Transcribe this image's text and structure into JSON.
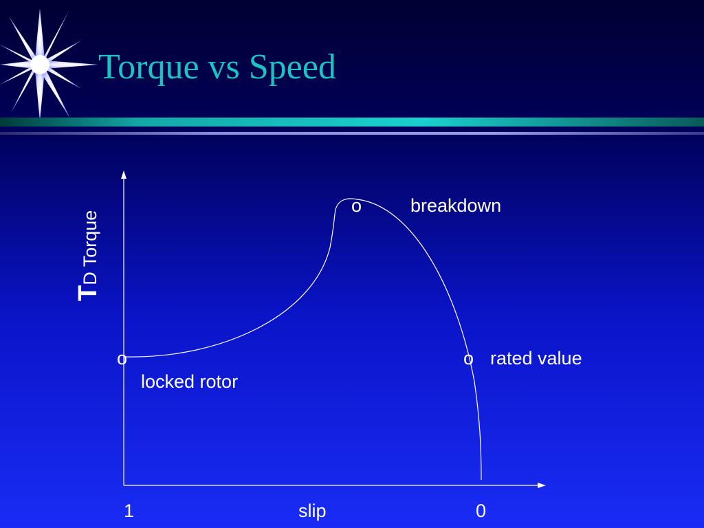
{
  "slide": {
    "title": "Torque vs Speed"
  },
  "diagram": {
    "y_axis_symbol": "T",
    "y_axis_label": "D Torque",
    "x_tick_left": "1",
    "x_axis_label": "slip",
    "x_tick_right": "0",
    "points": {
      "breakdown": {
        "marker": "o",
        "label": "breakdown"
      },
      "rated": {
        "marker": "o",
        "label": "rated value"
      },
      "locked": {
        "marker": "o",
        "label": "locked rotor"
      }
    },
    "colors": {
      "background_top": "#000033",
      "background_bottom": "#1a2cf5",
      "title": "#1bc4c4",
      "accent_bar": "#1bc4c4",
      "curve": "#ffffff"
    }
  }
}
